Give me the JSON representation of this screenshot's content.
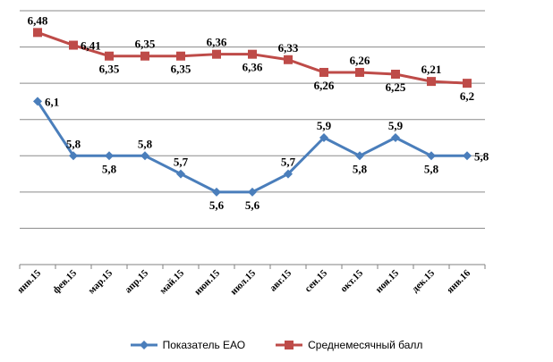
{
  "chart_data": {
    "type": "line",
    "categories": [
      "янв.15",
      "фев.15",
      "мар.15",
      "апр.15",
      "май.15",
      "июн.15",
      "июл.15",
      "авг.15",
      "сен.15",
      "окт.15",
      "ноя.15",
      "дек.15",
      "янв.16"
    ],
    "series": [
      {
        "name": "Показатель  ЕАО",
        "color": "#4a7ebb",
        "marker": "diamond",
        "values": [
          6.1,
          5.8,
          5.8,
          5.8,
          5.7,
          5.6,
          5.6,
          5.7,
          5.9,
          5.8,
          5.9,
          5.8,
          5.8
        ],
        "labels": [
          "6,1",
          "5,8",
          "5,8",
          "5,8",
          "5,7",
          "5,6",
          "5,6",
          "5,7",
          "5,9",
          "5,8",
          "5,9",
          "5,8",
          "5,8"
        ],
        "label_side": [
          "right",
          "above",
          "below",
          "above",
          "above",
          "below",
          "below",
          "above",
          "above",
          "below",
          "above",
          "below",
          "right"
        ]
      },
      {
        "name": "Среднемесячный  балл",
        "color": "#be4b48",
        "marker": "square",
        "values": [
          6.48,
          6.41,
          6.35,
          6.35,
          6.35,
          6.36,
          6.36,
          6.33,
          6.26,
          6.26,
          6.25,
          6.21,
          6.2
        ],
        "labels": [
          "6,48",
          "6,41",
          "6,35",
          "6,35",
          "6,35",
          "6,36",
          "6,36",
          "6,33",
          "6,26",
          "6,26",
          "6,25",
          "6,21",
          "6,2"
        ],
        "label_side": [
          "above",
          "right",
          "below",
          "above",
          "below",
          "above",
          "below",
          "above",
          "below",
          "above",
          "below",
          "above",
          "below"
        ]
      }
    ],
    "ylim": [
      5.2,
      6.6
    ],
    "grid": true,
    "legend_position": "bottom"
  }
}
